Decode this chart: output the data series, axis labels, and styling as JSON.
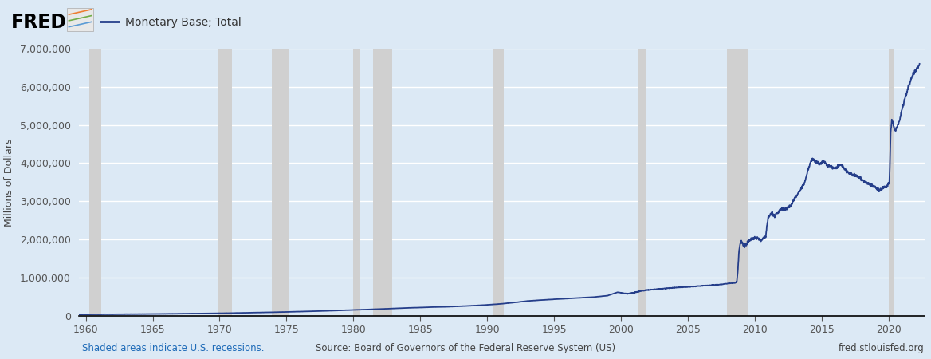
{
  "title": "Monetary Base; Total",
  "ylabel": "Millions of Dollars",
  "background_color": "#dce9f5",
  "plot_bg_color": "#dce9f5",
  "line_color": "#253e8a",
  "line_width": 1.3,
  "ylim": [
    0,
    7000000
  ],
  "yticks": [
    0,
    1000000,
    2000000,
    3000000,
    4000000,
    5000000,
    6000000,
    7000000
  ],
  "xlim_start": 1959.5,
  "xlim_end": 2022.7,
  "xticks": [
    1960,
    1965,
    1970,
    1975,
    1980,
    1985,
    1990,
    1995,
    2000,
    2005,
    2010,
    2015,
    2020
  ],
  "recession_bands": [
    [
      1960.25,
      1961.17
    ],
    [
      1969.92,
      1970.92
    ],
    [
      1973.92,
      1975.17
    ],
    [
      1980.0,
      1980.5
    ],
    [
      1981.5,
      1982.92
    ],
    [
      1990.5,
      1991.25
    ],
    [
      2001.25,
      2001.92
    ],
    [
      2007.92,
      2009.5
    ],
    [
      2020.0,
      2020.42
    ]
  ],
  "recession_color": "#d0d0d0",
  "recession_alpha": 1.0,
  "footer_left": "Shaded areas indicate U.S. recessions.",
  "footer_center": "Source: Board of Governors of the Federal Reserve System (US)",
  "footer_right": "fred.stlouisfed.org",
  "footer_color": "#1e6bb8",
  "legend_label": "Monetary Base; Total",
  "grid_color": "#ffffff",
  "tick_color": "#555555",
  "key_points": [
    [
      1959.5,
      39000
    ],
    [
      1960.5,
      41000
    ],
    [
      1961.0,
      42500
    ],
    [
      1962.0,
      44000
    ],
    [
      1963.0,
      46500
    ],
    [
      1964.0,
      49000
    ],
    [
      1965.0,
      52000
    ],
    [
      1966.0,
      55000
    ],
    [
      1967.0,
      59000
    ],
    [
      1968.0,
      63000
    ],
    [
      1969.0,
      66000
    ],
    [
      1970.0,
      70000
    ],
    [
      1971.0,
      76000
    ],
    [
      1972.0,
      83000
    ],
    [
      1973.0,
      90000
    ],
    [
      1974.0,
      97000
    ],
    [
      1975.0,
      105000
    ],
    [
      1976.0,
      114000
    ],
    [
      1977.0,
      123000
    ],
    [
      1978.0,
      134000
    ],
    [
      1979.0,
      145000
    ],
    [
      1980.0,
      157000
    ],
    [
      1981.0,
      168000
    ],
    [
      1982.0,
      181000
    ],
    [
      1983.0,
      195000
    ],
    [
      1984.0,
      210000
    ],
    [
      1985.0,
      220000
    ],
    [
      1986.0,
      232000
    ],
    [
      1987.0,
      240000
    ],
    [
      1988.0,
      254000
    ],
    [
      1989.0,
      270000
    ],
    [
      1990.0,
      290000
    ],
    [
      1991.0,
      315000
    ],
    [
      1992.0,
      350000
    ],
    [
      1993.0,
      390000
    ],
    [
      1994.0,
      415000
    ],
    [
      1995.0,
      435000
    ],
    [
      1996.0,
      455000
    ],
    [
      1997.0,
      475000
    ],
    [
      1998.0,
      495000
    ],
    [
      1999.0,
      530000
    ],
    [
      1999.75,
      620000
    ],
    [
      2000.5,
      580000
    ],
    [
      2001.0,
      610000
    ],
    [
      2001.5,
      655000
    ],
    [
      2002.0,
      680000
    ],
    [
      2003.0,
      710000
    ],
    [
      2004.0,
      740000
    ],
    [
      2005.0,
      760000
    ],
    [
      2006.0,
      785000
    ],
    [
      2007.0,
      810000
    ],
    [
      2007.5,
      825000
    ],
    [
      2008.0,
      848000
    ],
    [
      2008.58,
      870000
    ],
    [
      2008.67,
      900000
    ],
    [
      2008.75,
      1200000
    ],
    [
      2008.83,
      1700000
    ],
    [
      2008.92,
      1900000
    ],
    [
      2009.0,
      1950000
    ],
    [
      2009.17,
      1820000
    ],
    [
      2009.33,
      1870000
    ],
    [
      2009.5,
      1920000
    ],
    [
      2009.75,
      2000000
    ],
    [
      2010.0,
      2050000
    ],
    [
      2010.5,
      1980000
    ],
    [
      2010.67,
      2050000
    ],
    [
      2010.83,
      2080000
    ],
    [
      2011.0,
      2560000
    ],
    [
      2011.25,
      2700000
    ],
    [
      2011.5,
      2620000
    ],
    [
      2011.75,
      2700000
    ],
    [
      2012.0,
      2800000
    ],
    [
      2012.25,
      2780000
    ],
    [
      2012.5,
      2830000
    ],
    [
      2012.75,
      2900000
    ],
    [
      2013.0,
      3100000
    ],
    [
      2013.25,
      3200000
    ],
    [
      2013.5,
      3350000
    ],
    [
      2013.75,
      3500000
    ],
    [
      2014.0,
      3850000
    ],
    [
      2014.17,
      4000000
    ],
    [
      2014.33,
      4100000
    ],
    [
      2014.5,
      4050000
    ],
    [
      2014.67,
      4020000
    ],
    [
      2014.83,
      3980000
    ],
    [
      2015.0,
      4000000
    ],
    [
      2015.17,
      4050000
    ],
    [
      2015.33,
      3980000
    ],
    [
      2015.5,
      3920000
    ],
    [
      2015.67,
      3930000
    ],
    [
      2015.83,
      3880000
    ],
    [
      2016.0,
      3850000
    ],
    [
      2016.17,
      3900000
    ],
    [
      2016.33,
      3930000
    ],
    [
      2016.5,
      3940000
    ],
    [
      2016.67,
      3870000
    ],
    [
      2016.83,
      3800000
    ],
    [
      2017.0,
      3750000
    ],
    [
      2017.25,
      3700000
    ],
    [
      2017.5,
      3680000
    ],
    [
      2017.75,
      3640000
    ],
    [
      2018.0,
      3590000
    ],
    [
      2018.25,
      3500000
    ],
    [
      2018.5,
      3460000
    ],
    [
      2018.75,
      3420000
    ],
    [
      2019.0,
      3370000
    ],
    [
      2019.17,
      3310000
    ],
    [
      2019.33,
      3280000
    ],
    [
      2019.5,
      3310000
    ],
    [
      2019.67,
      3370000
    ],
    [
      2019.83,
      3390000
    ],
    [
      2020.0,
      3450000
    ],
    [
      2020.08,
      3500000
    ],
    [
      2020.17,
      4800000
    ],
    [
      2020.25,
      5100000
    ],
    [
      2020.33,
      5050000
    ],
    [
      2020.42,
      4900000
    ],
    [
      2020.5,
      4850000
    ],
    [
      2020.67,
      4950000
    ],
    [
      2020.83,
      5100000
    ],
    [
      2021.0,
      5400000
    ],
    [
      2021.17,
      5600000
    ],
    [
      2021.33,
      5800000
    ],
    [
      2021.5,
      6000000
    ],
    [
      2021.67,
      6150000
    ],
    [
      2021.83,
      6300000
    ],
    [
      2022.0,
      6400000
    ],
    [
      2022.17,
      6500000
    ],
    [
      2022.33,
      6550000
    ]
  ]
}
